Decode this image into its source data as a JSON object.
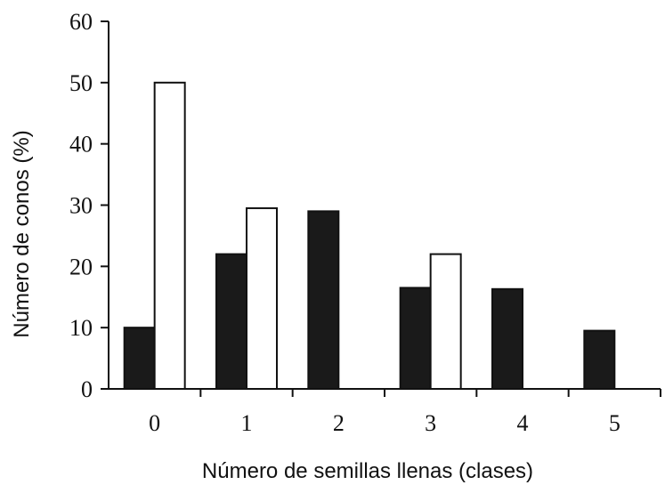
{
  "chart_data": {
    "type": "bar",
    "title": "",
    "xlabel": "Número de semillas llenas (clases)",
    "ylabel": "Número de conos (%)",
    "categories": [
      "0",
      "1",
      "2",
      "3",
      "4",
      "5"
    ],
    "yticks": [
      "0",
      "10",
      "20",
      "30",
      "40",
      "50",
      "60"
    ],
    "ylim": [
      0,
      60
    ],
    "grid": false,
    "legend": "none",
    "series": [
      {
        "values": [
          10,
          22,
          29,
          16.5,
          16.3,
          9.5
        ],
        "color": "#1a1a1a"
      },
      {
        "values": [
          50,
          29.5,
          0,
          22,
          0,
          0
        ],
        "color": "#ffffff"
      }
    ]
  }
}
